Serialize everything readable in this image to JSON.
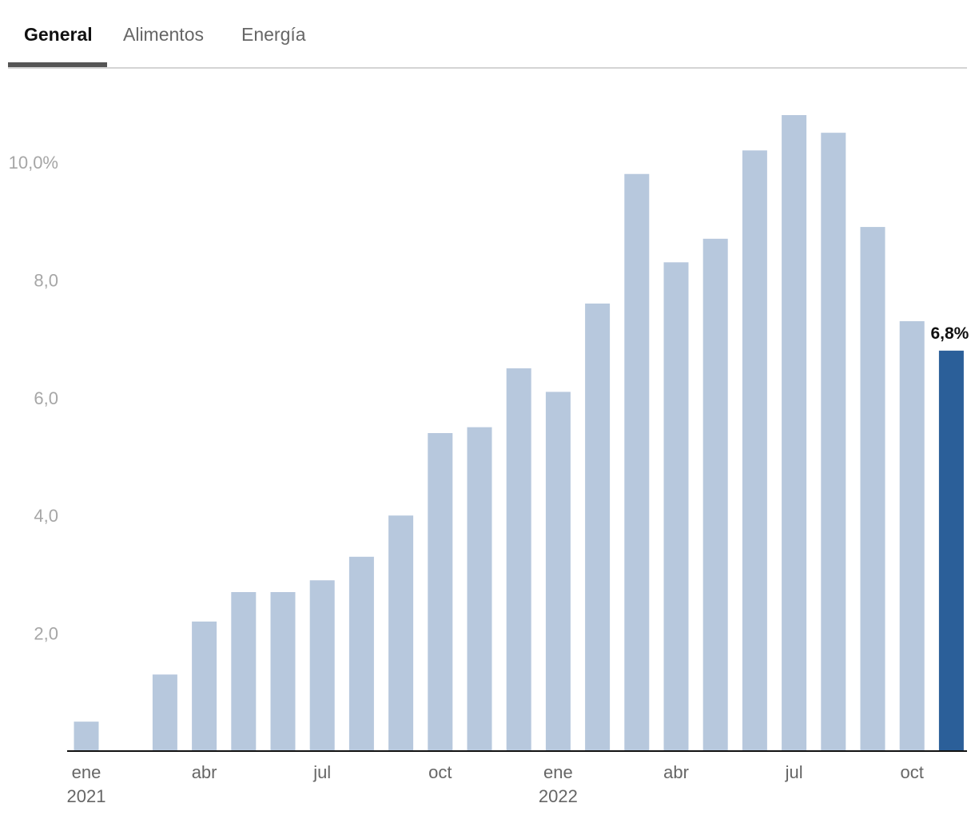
{
  "tabs": [
    {
      "label": "General",
      "active": true
    },
    {
      "label": "Alimentos",
      "active": false
    },
    {
      "label": "Energía",
      "active": false
    }
  ],
  "colors": {
    "bar": "#b7c8dd",
    "highlight": "#2b5f99",
    "axis": "#111111",
    "tab_active_underline": "#555555"
  },
  "chart_data": {
    "type": "bar",
    "categories": [
      "ene 2021",
      "feb 2021",
      "mar 2021",
      "abr 2021",
      "may 2021",
      "jun 2021",
      "jul 2021",
      "ago 2021",
      "sep 2021",
      "oct 2021",
      "nov 2021",
      "dic 2021",
      "ene 2022",
      "feb 2022",
      "mar 2022",
      "abr 2022",
      "may 2022",
      "jun 2022",
      "jul 2022",
      "ago 2022",
      "sep 2022",
      "oct 2022",
      "nov 2022"
    ],
    "values": [
      0.5,
      0.0,
      1.3,
      2.2,
      2.7,
      2.7,
      2.9,
      3.3,
      4.0,
      5.4,
      5.5,
      6.5,
      6.1,
      7.6,
      9.8,
      8.3,
      8.7,
      10.2,
      10.8,
      10.5,
      8.9,
      7.3,
      6.8
    ],
    "highlight_index": 22,
    "value_label": "6,8%",
    "ylim": [
      0,
      10.8
    ],
    "yticks": [
      {
        "value": 2,
        "label": "2,0"
      },
      {
        "value": 4,
        "label": "4,0"
      },
      {
        "value": 6,
        "label": "6,0"
      },
      {
        "value": 8,
        "label": "8,0"
      },
      {
        "value": 10,
        "label": "10,0%"
      }
    ],
    "xticks": [
      {
        "index": 0,
        "label": "ene",
        "sublabel": "2021"
      },
      {
        "index": 3,
        "label": "abr",
        "sublabel": ""
      },
      {
        "index": 6,
        "label": "jul",
        "sublabel": ""
      },
      {
        "index": 9,
        "label": "oct",
        "sublabel": ""
      },
      {
        "index": 12,
        "label": "ene",
        "sublabel": "2022"
      },
      {
        "index": 15,
        "label": "abr",
        "sublabel": ""
      },
      {
        "index": 18,
        "label": "jul",
        "sublabel": ""
      },
      {
        "index": 21,
        "label": "oct",
        "sublabel": ""
      }
    ],
    "grid": false,
    "title": "",
    "xlabel": "",
    "ylabel": ""
  }
}
